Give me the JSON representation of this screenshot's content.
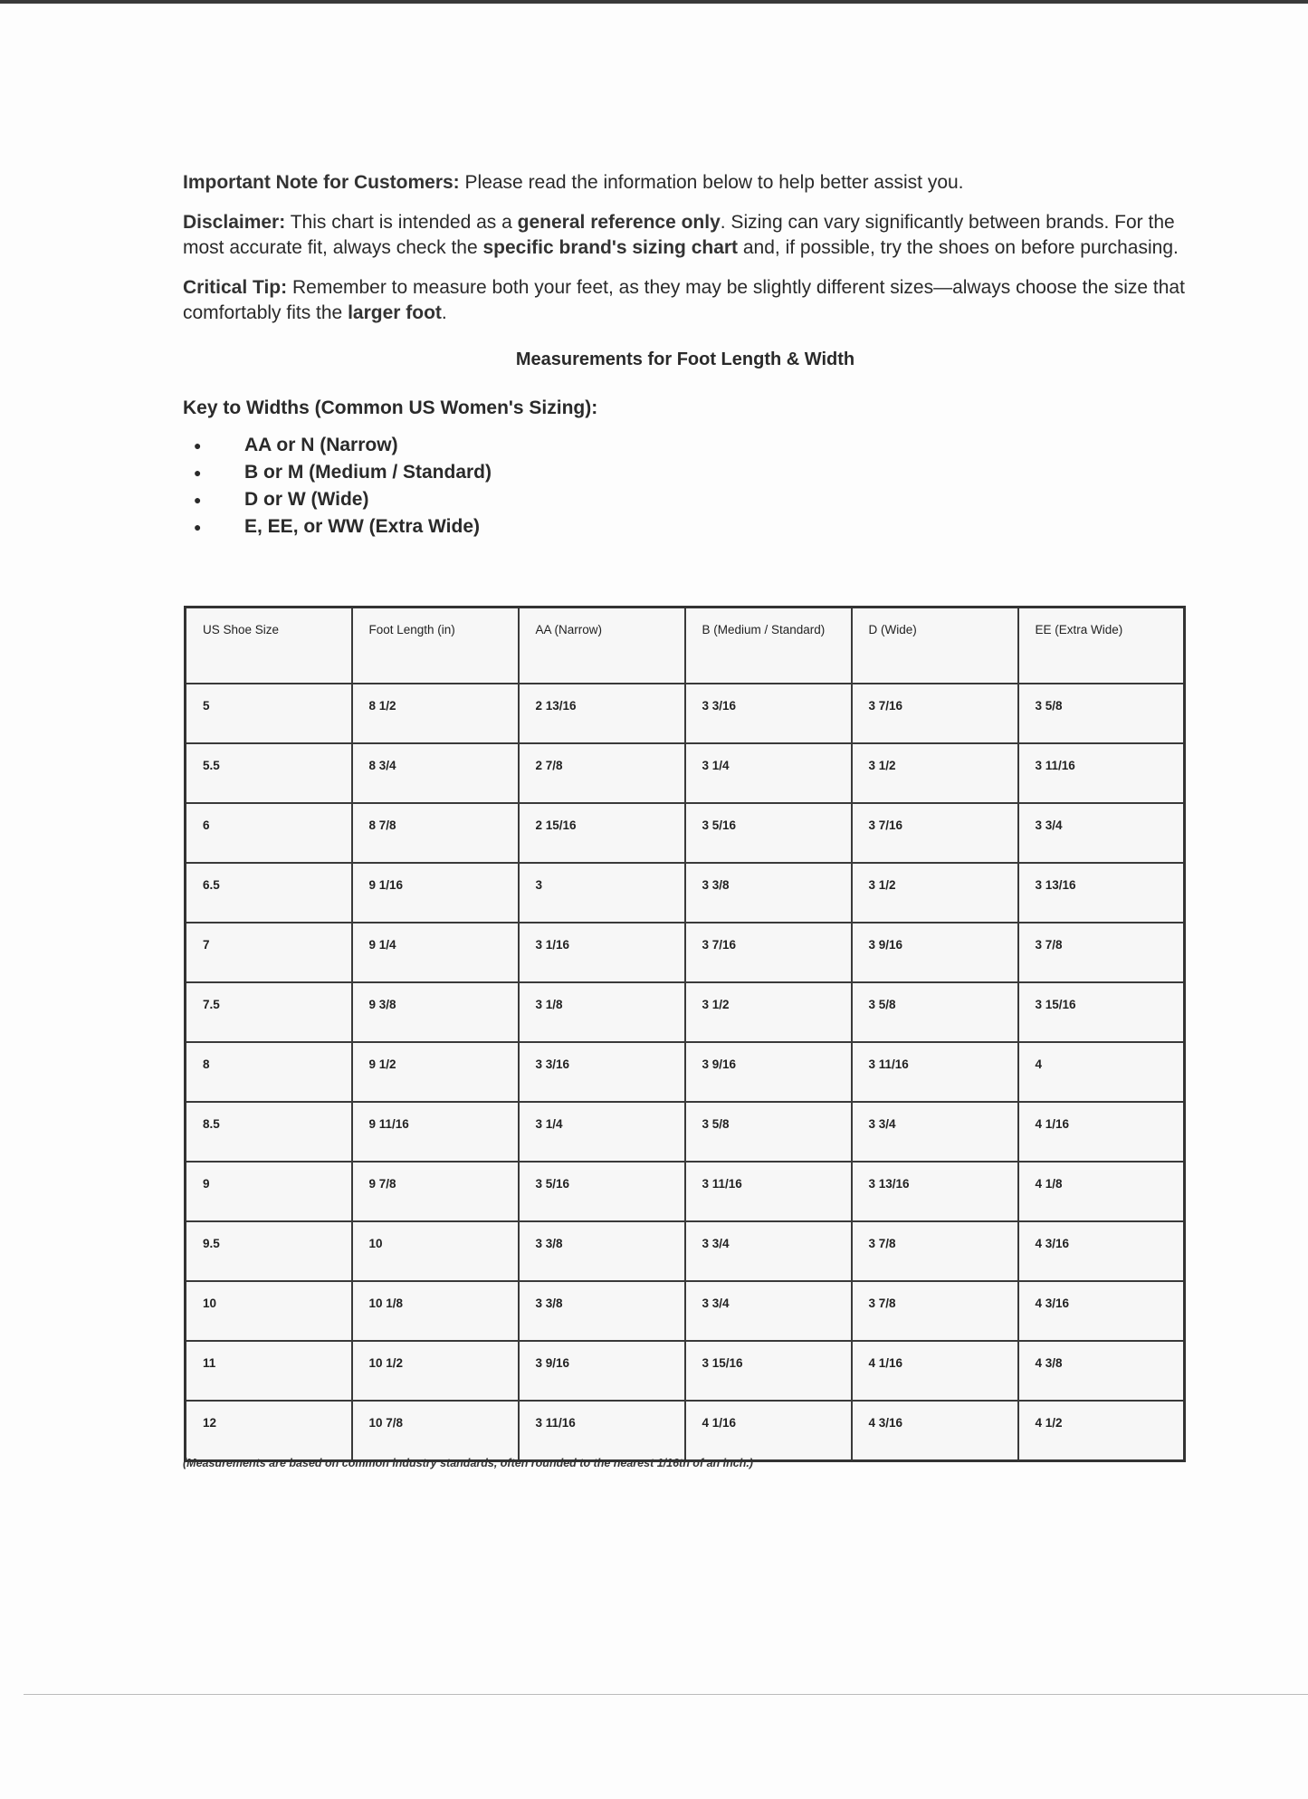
{
  "intro": {
    "note_label": "Important Note for Customers:",
    "note_text": " Please read the information below to help better assist you.",
    "disclaimer_label": "Disclaimer:",
    "disclaimer_1": " This chart is intended as a ",
    "disclaimer_b1": "general reference only",
    "disclaimer_2": ". Sizing can vary significantly between brands. For the most accurate fit, always check the ",
    "disclaimer_b2": "specific brand's sizing chart",
    "disclaimer_3": " and, if possible, try the shoes on before purchasing.",
    "tip_label": "Critical Tip:",
    "tip_1": " Remember to measure both your feet, as they may be slightly different sizes—always choose the size that comfortably fits the ",
    "tip_b": "larger foot",
    "tip_2": "."
  },
  "title": "Measurements for Foot Length & Width",
  "key": {
    "heading": "Key to Widths (Common US Women's Sizing):",
    "bullet": "●",
    "items": [
      "AA or N (Narrow)",
      "B or M (Medium / Standard)",
      "D or W (Wide)",
      "E, EE, or WW (Extra Wide)"
    ]
  },
  "table": {
    "headers": [
      "US Shoe Size",
      "Foot Length (in)",
      "AA (Narrow)",
      "B (Medium / Standard)",
      "D (Wide)",
      "EE (Extra Wide)"
    ],
    "rows": [
      [
        "5",
        "8 1/2",
        "2 13/16",
        "3 3/16",
        "3 7/16",
        "3 5/8"
      ],
      [
        "5.5",
        "8 3/4",
        "2 7/8",
        "3 1/4",
        "3 1/2",
        "3 11/16"
      ],
      [
        "6",
        "8 7/8",
        "2 15/16",
        "3 5/16",
        "3 7/16",
        "3 3/4"
      ],
      [
        "6.5",
        "9 1/16",
        "3",
        "3 3/8",
        "3 1/2",
        "3 13/16"
      ],
      [
        "7",
        "9 1/4",
        "3 1/16",
        "3 7/16",
        "3 9/16",
        "3 7/8"
      ],
      [
        "7.5",
        "9 3/8",
        "3 1/8",
        "3 1/2",
        "3 5/8",
        "3 15/16"
      ],
      [
        "8",
        "9 1/2",
        "3 3/16",
        "3 9/16",
        "3 11/16",
        "4"
      ],
      [
        "8.5",
        "9 11/16",
        "3 1/4",
        "3 5/8",
        "3 3/4",
        "4 1/16"
      ],
      [
        "9",
        "9 7/8",
        "3 5/16",
        "3 11/16",
        "3 13/16",
        "4 1/8"
      ],
      [
        "9.5",
        "10",
        "3 3/8",
        "3 3/4",
        "3 7/8",
        "4 3/16"
      ],
      [
        "10",
        "10 1/8",
        "3 3/8",
        "3 3/4",
        "3 7/8",
        "4 3/16"
      ],
      [
        "11",
        "10 1/2",
        "3 9/16",
        "3 15/16",
        "4 1/16",
        "4 3/8"
      ],
      [
        "12",
        "10 7/8",
        "3 11/16",
        "4 1/16",
        "4 3/16",
        "4 1/2"
      ]
    ]
  },
  "footnote": "(Measurements are based on common industry standards, often rounded to the nearest 1/16th of an inch.)"
}
